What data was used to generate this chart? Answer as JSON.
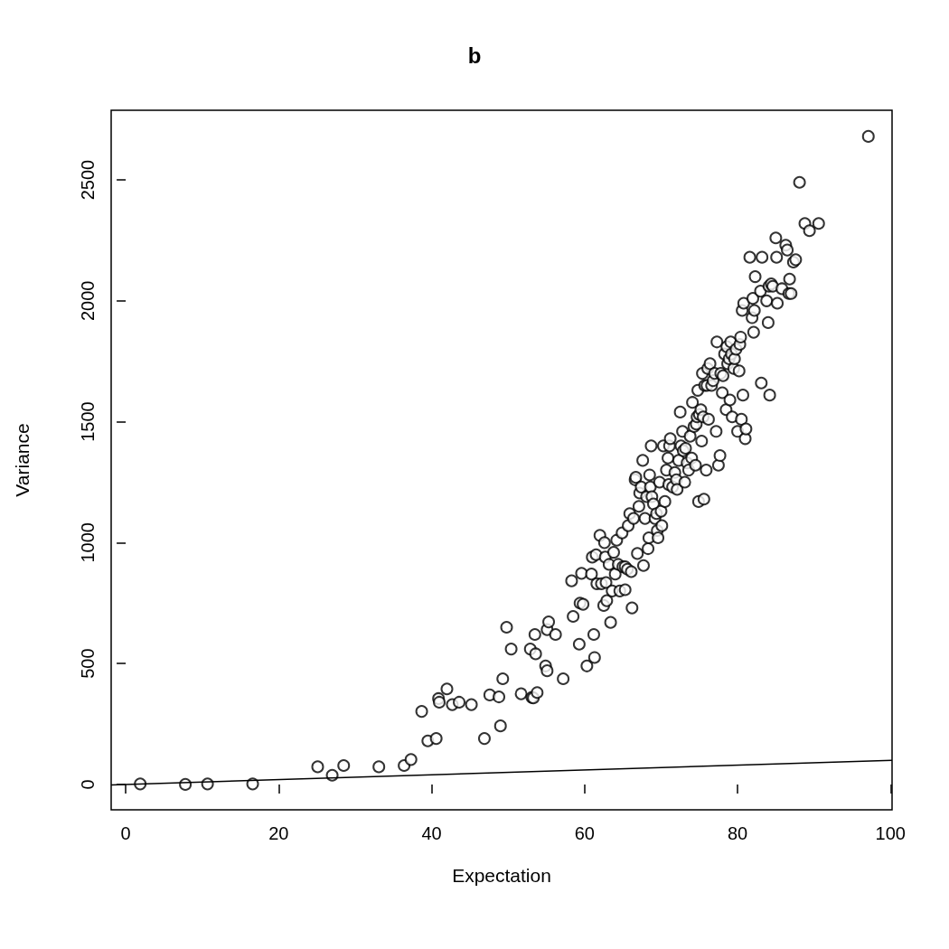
{
  "chart_data": {
    "type": "scatter",
    "title": "b",
    "xlabel": "Expectation",
    "ylabel": "Variance",
    "xlim": [
      -1.9,
      100.2
    ],
    "ylim": [
      -105,
      2788
    ],
    "xticks": [
      0,
      20,
      40,
      60,
      80,
      100
    ],
    "yticks": [
      0,
      500,
      1000,
      1500,
      2000,
      2500
    ],
    "grid": false,
    "marker": "circle",
    "series": [
      {
        "color": "#000000",
        "x": [
          1.9,
          7.8,
          10.7,
          16.6,
          25.1,
          27,
          28.5,
          33.1,
          36.4,
          37.3,
          38.7,
          39.5,
          40.6,
          40.9,
          41,
          42,
          42.7,
          43.6,
          45.2,
          46.9,
          47.6,
          48.8,
          49,
          49.3,
          49.8,
          50.4,
          51.7,
          52.9,
          53.1,
          53.3,
          53.5,
          53.6,
          53.8,
          54.9,
          55.1,
          55.1,
          55.3,
          56.2,
          57.2,
          58.3,
          58.5,
          59.3,
          59.4,
          59.8,
          59.6,
          60.3,
          60.9,
          61,
          61.2,
          61.3,
          61.5,
          61.6,
          62,
          62.2,
          62.5,
          62.6,
          62.7,
          62.8,
          62.9,
          63.2,
          63.4,
          63.6,
          63.8,
          64,
          64.2,
          64.4,
          64.6,
          64.9,
          65,
          65.3,
          65.3,
          65.6,
          65.7,
          65.9,
          66.1,
          66.2,
          66.4,
          66.6,
          66.7,
          66.9,
          67.1,
          67.2,
          67.4,
          67.6,
          67.7,
          67.9,
          68.1,
          68.3,
          68.4,
          68.5,
          68.6,
          68.7,
          68.8,
          69,
          69.2,
          69.4,
          69.5,
          69.6,
          69.8,
          70,
          70.1,
          70.3,
          70.5,
          70.7,
          70.9,
          71,
          71.1,
          71.2,
          71.5,
          71.8,
          72,
          72.1,
          72.3,
          72.5,
          72.6,
          72.8,
          72.9,
          73.1,
          73.2,
          73.4,
          73.6,
          73.8,
          74,
          74.1,
          74.3,
          74.5,
          74.6,
          74.7,
          74.8,
          74.9,
          75,
          75.2,
          75.3,
          75.4,
          75.5,
          75.6,
          75.7,
          75.9,
          76,
          76.1,
          76.2,
          76.4,
          76.6,
          76.8,
          77,
          77.2,
          77.3,
          77.5,
          77.7,
          77.8,
          78,
          78.1,
          78.3,
          78.5,
          78.6,
          78.7,
          78.9,
          79,
          79.1,
          79.2,
          79.3,
          79.5,
          79.6,
          79.8,
          80,
          80.2,
          80.3,
          80.4,
          80.5,
          80.6,
          80.7,
          80.8,
          81,
          81.1,
          81.6,
          81.9,
          82,
          82.1,
          82.2,
          82.3,
          83,
          83.1,
          83.2,
          83.8,
          84,
          84.1,
          84.2,
          84.4,
          84.6,
          85,
          85.1,
          85.2,
          85.8,
          86.3,
          86.5,
          86.7,
          86.8,
          87,
          87.3,
          87.6,
          88.1,
          88.8,
          89.4,
          90.6,
          97.1
        ],
        "values": [
          2,
          0,
          2,
          2,
          73,
          38,
          78,
          73,
          78,
          103,
          302,
          180,
          190,
          355,
          340,
          395,
          330,
          340,
          330,
          190,
          370,
          362,
          242,
          437,
          650,
          560,
          375,
          560,
          360,
          358,
          620,
          540,
          380,
          490,
          470,
          640,
          672,
          620,
          437,
          842,
          695,
          580,
          750,
          745,
          873,
          490,
          870,
          940,
          620,
          525,
          950,
          830,
          1030,
          830,
          740,
          1000,
          940,
          835,
          760,
          910,
          670,
          800,
          960,
          870,
          1010,
          910,
          800,
          1040,
          900,
          805,
          900,
          890,
          1070,
          1120,
          880,
          730,
          1100,
          1260,
          1270,
          955,
          1150,
          1205,
          1230,
          1340,
          905,
          1100,
          1190,
          975,
          1020,
          1280,
          1230,
          1400,
          1190,
          1160,
          1100,
          1120,
          1050,
          1020,
          1250,
          1130,
          1070,
          1400,
          1170,
          1300,
          1350,
          1240,
          1400,
          1430,
          1230,
          1290,
          1260,
          1220,
          1340,
          1540,
          1400,
          1460,
          1380,
          1250,
          1390,
          1330,
          1300,
          1440,
          1350,
          1580,
          1480,
          1320,
          1490,
          1520,
          1630,
          1170,
          1530,
          1550,
          1420,
          1700,
          1520,
          1180,
          1650,
          1300,
          1650,
          1720,
          1510,
          1740,
          1650,
          1670,
          1700,
          1460,
          1830,
          1320,
          1360,
          1700,
          1620,
          1690,
          1780,
          1550,
          1810,
          1740,
          1760,
          1590,
          1830,
          1780,
          1520,
          1720,
          1760,
          1800,
          1460,
          1710,
          1820,
          1850,
          1510,
          1960,
          1610,
          1990,
          1430,
          1470,
          2180,
          1930,
          2010,
          1870,
          1960,
          2100,
          2040,
          1660,
          2180,
          2000,
          1910,
          2060,
          1610,
          2070,
          2060,
          2260,
          2180,
          1990,
          2050,
          2230,
          2210,
          2030,
          2090,
          2030,
          2160,
          2170,
          2490,
          2320,
          2290,
          2320,
          2680
        ]
      },
      {
        "type": "line",
        "color": "#000000",
        "marker": "none",
        "line_style": "solid",
        "x": [
          -1.9,
          100.2
        ],
        "values": [
          -2,
          100
        ]
      }
    ]
  }
}
